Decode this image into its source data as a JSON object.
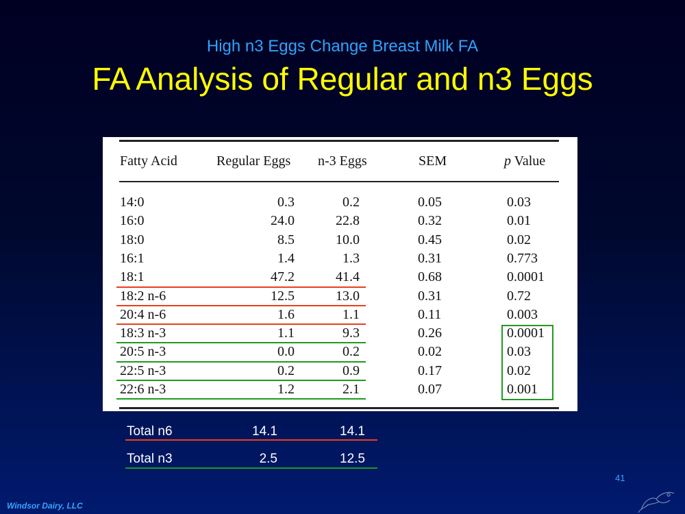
{
  "slide": {
    "subtitle": "High n3 Eggs Change Breast Milk FA",
    "title": "FA Analysis of Regular and n3 Eggs",
    "page_number": "41",
    "footer": "Windsor Dairy, LLC"
  },
  "table": {
    "headers": {
      "fatty_acid": "Fatty Acid",
      "regular": "Regular Eggs",
      "n3": "n-3 Eggs",
      "sem": "SEM",
      "p_italic": "p",
      "p_rest": " Value"
    },
    "rows": [
      {
        "fa": "14:0",
        "regular": "0.3",
        "n3": "0.2",
        "sem": "0.05",
        "p": "0.03"
      },
      {
        "fa": "16:0",
        "regular": "24.0",
        "n3": "22.8",
        "sem": "0.32",
        "p": "0.01"
      },
      {
        "fa": "18:0",
        "regular": "8.5",
        "n3": "10.0",
        "sem": "0.45",
        "p": "0.02"
      },
      {
        "fa": "16:1",
        "regular": "1.4",
        "n3": "1.3",
        "sem": "0.31",
        "p": "0.773"
      },
      {
        "fa": "18:1",
        "regular": "47.2",
        "n3": "41.4",
        "sem": "0.68",
        "p": "0.0001"
      },
      {
        "fa": "18:2 n-6",
        "regular": "12.5",
        "n3": "13.0",
        "sem": "0.31",
        "p": "0.72"
      },
      {
        "fa": "20:4 n-6",
        "regular": "1.6",
        "n3": "1.1",
        "sem": "0.11",
        "p": "0.003"
      },
      {
        "fa": "18:3 n-3",
        "regular": "1.1",
        "n3": "9.3",
        "sem": "0.26",
        "p": "0.0001"
      },
      {
        "fa": "20:5 n-3",
        "regular": "0.0",
        "n3": "0.2",
        "sem": "0.02",
        "p": "0.03"
      },
      {
        "fa": "22:5 n-3",
        "regular": "0.2",
        "n3": "0.9",
        "sem": "0.17",
        "p": "0.02"
      },
      {
        "fa": "22:6 n-3",
        "regular": "1.2",
        "n3": "2.1",
        "sem": "0.07",
        "p": "0.001"
      }
    ]
  },
  "totals": [
    {
      "label": "Total n6",
      "regular": "14.1",
      "n3": "14.1"
    },
    {
      "label": "Total n3",
      "regular": "2.5",
      "n3": "12.5"
    }
  ],
  "colors": {
    "n6_highlight": "#e8401c",
    "n3_highlight": "#1f9a1f",
    "title": "#ffff00",
    "subtitle": "#2fa3ff"
  }
}
